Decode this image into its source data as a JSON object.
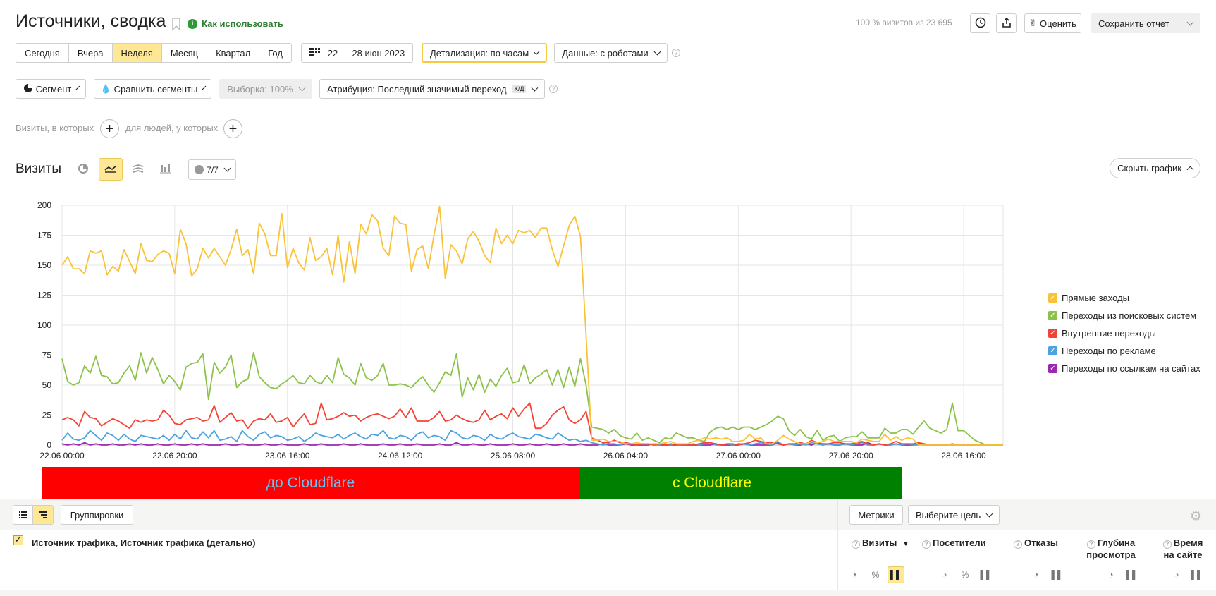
{
  "header": {
    "title": "Источники, сводка",
    "how_to_use": "Как использовать",
    "visits_summary": "100 % визитов из 23 695",
    "rate_label": "Оценить",
    "save_report_label": "Сохранить отчет"
  },
  "periods": [
    "Сегодня",
    "Вчера",
    "Неделя",
    "Месяц",
    "Квартал",
    "Год"
  ],
  "active_period": "Неделя",
  "date_range": "22 — 28 июн 2023",
  "detail_label": "Детализация: по часам",
  "data_label": "Данные: с роботами",
  "filters": {
    "segment_label": "Сегмент",
    "compare_label": "Сравнить сегменты",
    "sample_label": "Выборка: 100%",
    "attribution_label": "Атрибуция: Последний значимый переход",
    "attribution_badge": "К/Д"
  },
  "conditions": {
    "visits_where": "Визиты, в которых",
    "people_where": "для людей, у которых"
  },
  "chart_header": {
    "title": "Визиты",
    "series_count": "7/7",
    "hide_chart_label": "Скрыть график"
  },
  "chart_data": {
    "type": "line",
    "title": "Визиты",
    "ylim": [
      0,
      200
    ],
    "y_ticks": [
      "0",
      "25",
      "50",
      "75",
      "100",
      "125",
      "150",
      "175",
      "200"
    ],
    "x_tick_labels": [
      "22.06 00:00",
      "22.06 20:00",
      "23.06 16:00",
      "24.06 12:00",
      "25.06 08:00",
      "26.06 04:00",
      "27.06 00:00",
      "27.06 20:00",
      "28.06 16:00"
    ],
    "x_tick_hours": [
      0,
      20,
      40,
      60,
      80,
      100,
      120,
      140,
      160
    ],
    "x_max_hours": 167,
    "grid": true,
    "legend_position": "right",
    "series": [
      {
        "name": "Прямые заходы",
        "color": "#f8c33a",
        "values": [
          150,
          157,
          147,
          147,
          143,
          162,
          160,
          162,
          142,
          149,
          145,
          163,
          153,
          143,
          168,
          154,
          153,
          159,
          162,
          160,
          143,
          180,
          168,
          141,
          147,
          164,
          156,
          164,
          157,
          150,
          163,
          180,
          158,
          163,
          143,
          185,
          176,
          158,
          158,
          193,
          148,
          164,
          152,
          146,
          173,
          154,
          157,
          164,
          142,
          175,
          136,
          170,
          143,
          184,
          176,
          192,
          187,
          164,
          158,
          191,
          185,
          184,
          145,
          163,
          166,
          147,
          175,
          199,
          139,
          167,
          162,
          151,
          172,
          178,
          170,
          158,
          152,
          181,
          168,
          175,
          168,
          179,
          177,
          179,
          173,
          181,
          181,
          163,
          149,
          166,
          183,
          191,
          174,
          91,
          4,
          4,
          5,
          3,
          3,
          3,
          1,
          1,
          2,
          1,
          1,
          1,
          1,
          2,
          3,
          1,
          1,
          1,
          3,
          4,
          6,
          5,
          6,
          5,
          6,
          3,
          3,
          4,
          9,
          5,
          6,
          1,
          1,
          4,
          8,
          5,
          3,
          1,
          1,
          3,
          2,
          3,
          5,
          3,
          3,
          3,
          3,
          2,
          5,
          4,
          3,
          3,
          9,
          4,
          7,
          4,
          6,
          5,
          0,
          0,
          0,
          0,
          0,
          0,
          0,
          0,
          0,
          0,
          0,
          0,
          0,
          0,
          0,
          0
        ]
      },
      {
        "name": "Переходы из поисковых систем",
        "color": "#8bc34a",
        "values": [
          72,
          53,
          50,
          52,
          66,
          60,
          74,
          58,
          57,
          51,
          52,
          60,
          66,
          54,
          77,
          60,
          73,
          63,
          51,
          58,
          53,
          46,
          65,
          68,
          69,
          76,
          38,
          69,
          60,
          65,
          75,
          48,
          53,
          55,
          77,
          57,
          52,
          48,
          47,
          51,
          54,
          58,
          52,
          51,
          58,
          53,
          51,
          58,
          52,
          73,
          59,
          56,
          50,
          68,
          56,
          54,
          58,
          68,
          50,
          50,
          51,
          50,
          48,
          53,
          57,
          50,
          44,
          52,
          61,
          58,
          76,
          40,
          56,
          46,
          59,
          44,
          55,
          49,
          58,
          64,
          52,
          53,
          67,
          51,
          56,
          59,
          63,
          50,
          63,
          48,
          65,
          49,
          72,
          50,
          15,
          14,
          13,
          10,
          13,
          8,
          6,
          5,
          10,
          4,
          6,
          4,
          2,
          6,
          5,
          10,
          8,
          6,
          6,
          4,
          3,
          11,
          14,
          15,
          13,
          15,
          13,
          15,
          15,
          13,
          15,
          17,
          20,
          24,
          22,
          12,
          8,
          13,
          7,
          5,
          12,
          4,
          7,
          8,
          3,
          6,
          7,
          7,
          11,
          6,
          6,
          6,
          14,
          10,
          10,
          13,
          13,
          9,
          15,
          20,
          14,
          12,
          10,
          13,
          35,
          12,
          12,
          8,
          4,
          2,
          0,
          0,
          0,
          0
        ]
      },
      {
        "name": "Внутренние переходы",
        "color": "#f44336",
        "values": [
          21,
          23,
          21,
          16,
          28,
          23,
          22,
          16,
          19,
          22,
          20,
          17,
          14,
          21,
          19,
          21,
          20,
          21,
          29,
          25,
          18,
          17,
          21,
          22,
          23,
          20,
          21,
          33,
          19,
          23,
          27,
          20,
          21,
          14,
          20,
          22,
          21,
          26,
          19,
          20,
          23,
          15,
          21,
          26,
          17,
          18,
          35,
          21,
          22,
          24,
          27,
          24,
          25,
          20,
          23,
          25,
          26,
          24,
          22,
          24,
          30,
          23,
          31,
          20,
          20,
          20,
          23,
          28,
          20,
          21,
          25,
          22,
          20,
          19,
          21,
          29,
          21,
          24,
          26,
          22,
          31,
          24,
          30,
          35,
          14,
          14,
          18,
          25,
          29,
          32,
          21,
          18,
          21,
          28,
          6,
          4,
          2,
          2,
          4,
          2,
          2,
          1,
          0,
          1,
          1,
          0,
          1,
          0,
          1,
          0,
          0,
          0,
          0,
          1,
          2,
          2,
          1,
          0,
          1,
          1,
          0,
          1,
          2,
          4,
          3,
          2,
          2,
          1,
          0,
          1,
          1,
          2,
          1,
          4,
          2,
          1,
          1,
          2,
          2,
          1,
          1,
          2,
          3,
          1,
          0,
          1,
          0,
          1,
          3,
          1,
          1,
          1,
          2,
          1,
          0,
          0,
          0,
          0,
          1,
          0,
          0,
          0,
          0,
          0,
          0,
          0,
          0,
          0
        ]
      },
      {
        "name": "Переходы по рекламе",
        "color": "#4aa3e0",
        "values": [
          4,
          10,
          5,
          4,
          6,
          12,
          8,
          4,
          10,
          8,
          4,
          9,
          5,
          3,
          8,
          7,
          6,
          5,
          8,
          4,
          9,
          5,
          12,
          6,
          5,
          11,
          6,
          12,
          4,
          5,
          7,
          3,
          12,
          7,
          4,
          9,
          11,
          6,
          8,
          7,
          4,
          5,
          7,
          3,
          6,
          10,
          8,
          7,
          6,
          9,
          5,
          8,
          10,
          7,
          5,
          9,
          8,
          12,
          6,
          5,
          8,
          7,
          4,
          9,
          11,
          6,
          8,
          7,
          4,
          12,
          10,
          6,
          5,
          8,
          7,
          4,
          9,
          6,
          5,
          8,
          10,
          7,
          6,
          5,
          9,
          8,
          6,
          5,
          10,
          7,
          4,
          5,
          3,
          4,
          2,
          1,
          0,
          1,
          1,
          0,
          2,
          1,
          0,
          1,
          1,
          0,
          0,
          1,
          0,
          1,
          0,
          0,
          1,
          0,
          1,
          2,
          0,
          0,
          1,
          0,
          1,
          1,
          0,
          1,
          2,
          1,
          0,
          3,
          0,
          1,
          0,
          1,
          0,
          2,
          1,
          0,
          1,
          0,
          0,
          1,
          0,
          1,
          2,
          0,
          0,
          1,
          0,
          0,
          1,
          0,
          1,
          0,
          0,
          1,
          0,
          0,
          0,
          0,
          0,
          0,
          0,
          0,
          0,
          0,
          0,
          0,
          0,
          0
        ]
      },
      {
        "name": "Переходы по ссылкам на сайтах",
        "color": "#9c27b0",
        "values": [
          1,
          0,
          1,
          0,
          2,
          0,
          1,
          0,
          0,
          1,
          0,
          0,
          1,
          0,
          1,
          0,
          0,
          1,
          0,
          0,
          1,
          0,
          0,
          1,
          0,
          1,
          0,
          0,
          0,
          1,
          0,
          0,
          1,
          0,
          0,
          0,
          1,
          0,
          0,
          1,
          0,
          0,
          0,
          1,
          0,
          0,
          1,
          0,
          0,
          0,
          1,
          0,
          0,
          1,
          0,
          0,
          0,
          1,
          0,
          0,
          1,
          0,
          0,
          1,
          0,
          0,
          0,
          1,
          0,
          0,
          2,
          0,
          0,
          1,
          0,
          0,
          1,
          0,
          0,
          0,
          1,
          0,
          0,
          1,
          0,
          0,
          1,
          0,
          0,
          1,
          0,
          0,
          1,
          0,
          0,
          0,
          1,
          0,
          0,
          0,
          1,
          0,
          0,
          0,
          0,
          1,
          0,
          0,
          0,
          0,
          1,
          0,
          0,
          0,
          0,
          0,
          1,
          0,
          0,
          0,
          0,
          1,
          0,
          0,
          0,
          0,
          0,
          2,
          0,
          1,
          0,
          0,
          1,
          0,
          2,
          0,
          1,
          0,
          0,
          1,
          0,
          0,
          0,
          2,
          0,
          1,
          0,
          0,
          1,
          0,
          0,
          0,
          1,
          0,
          0,
          0,
          0,
          0,
          0,
          0,
          0,
          0,
          0,
          0,
          0,
          0,
          0,
          0
        ]
      }
    ]
  },
  "annotations": {
    "before": "до Cloudflare",
    "after": "с Cloudflare"
  },
  "table": {
    "groupings_label": "Группировки",
    "metrics_label": "Метрики",
    "goal_label": "Выберите цель",
    "dimension_header": "Источник трафика, Источник трафика (детально)",
    "metric_headers": [
      {
        "line1": "Визиты",
        "line2": "",
        "sort": "▼"
      },
      {
        "line1": "Посетители",
        "line2": ""
      },
      {
        "line1": "Отказы",
        "line2": ""
      },
      {
        "line1": "Глубина",
        "line2": "просмотра"
      },
      {
        "line1": "Время",
        "line2": "на сайте"
      }
    ]
  }
}
